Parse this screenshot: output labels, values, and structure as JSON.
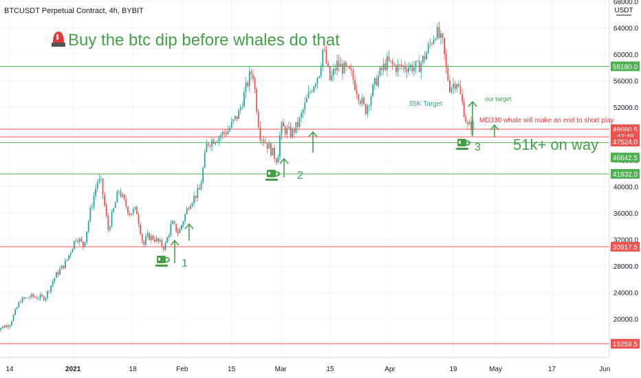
{
  "header": {
    "symbol_title": "BTCUSDT Perpetual Contract, 4h, BYBIT",
    "currency": "USDT"
  },
  "colors": {
    "up": "#26a69a",
    "down": "#ef5350",
    "green_line": "#4caf50",
    "red_line": "#ef5350",
    "annotation_green": "#43a047",
    "annotation_red": "#e53935"
  },
  "annotations": {
    "headline_icon": "red-siren-icon",
    "headline": "Buy the btc dip before whales do that",
    "target_55k": "55K Target",
    "our_target": "our target",
    "whale_note": "MD330 whale will make an end to short play",
    "on_way": "51k+ on way",
    "dip1": "1",
    "dip2": "2",
    "dip3": "3",
    "dip_icon": "coffee-cup-icon",
    "arrow_icon": "up-arrow-icon"
  },
  "price_badges": [
    {
      "label": "58180.0",
      "price": 58180,
      "color": "green"
    },
    {
      "label": "48680.5",
      "price": 48680.5,
      "color": "red"
    },
    {
      "label": "43:49",
      "price": 47650,
      "color": "red"
    },
    {
      "label": "47524.0",
      "price": 46800,
      "color": "red"
    },
    {
      "label": "46642.5",
      "price": 44400,
      "color": "green"
    },
    {
      "label": "41932.0",
      "price": 41932,
      "color": "green"
    },
    {
      "label": "30917.5",
      "price": 30917.5,
      "color": "red"
    },
    {
      "label": "16259.5",
      "price": 16259.5,
      "color": "red"
    }
  ],
  "chart_data": {
    "type": "candlestick",
    "title": "BTCUSDT Perpetual Contract, 4h, BYBIT",
    "yunit": "USDT",
    "ylim": [
      14200,
      68200
    ],
    "y_ticks": [
      "68000.0",
      "64000.0",
      "60000.0",
      "56000.0",
      "52000.0",
      "48000.0",
      "44000.0",
      "40000.0",
      "36000.0",
      "32000.0",
      "28000.0",
      "24000.0",
      "20000.0"
    ],
    "x_ticks": [
      "14",
      "2021",
      "18",
      "Feb",
      "15",
      "Mar",
      "15",
      "Apr",
      "19",
      "May",
      "17",
      "Jun"
    ],
    "series": [
      {
        "name": "price",
        "points": [
          [
            "Dec 10",
            18400
          ],
          [
            "Dec 14",
            19200
          ],
          [
            "Dec 17",
            22800
          ],
          [
            "Dec 20",
            23400
          ],
          [
            "Dec 24",
            23200
          ],
          [
            "Dec 27",
            26500
          ],
          [
            "Dec 30",
            28600
          ],
          [
            "Jan 2",
            32500
          ],
          [
            "Jan 4",
            31000
          ],
          [
            "Jan 6",
            36500
          ],
          [
            "Jan 8",
            41000
          ],
          [
            "Jan 9",
            40500
          ],
          [
            "Jan 11",
            33500
          ],
          [
            "Jan 13",
            37500
          ],
          [
            "Jan 14",
            39500
          ],
          [
            "Jan 17",
            36000
          ],
          [
            "Jan 19",
            36500
          ],
          [
            "Jan 21",
            31000
          ],
          [
            "Jan 22",
            32500
          ],
          [
            "Jan 24",
            32200
          ],
          [
            "Jan 27",
            30800
          ],
          [
            "Jan 29",
            34500
          ],
          [
            "Jan 31",
            33000
          ],
          [
            "Feb 3",
            37500
          ],
          [
            "Feb 6",
            39500
          ],
          [
            "Feb 8",
            46500
          ],
          [
            "Feb 11",
            47500
          ],
          [
            "Feb 14",
            48500
          ],
          [
            "Feb 17",
            51000
          ],
          [
            "Feb 20",
            56500
          ],
          [
            "Feb 21",
            57500
          ],
          [
            "Feb 23",
            48000
          ],
          [
            "Feb 25",
            46500
          ],
          [
            "Feb 28",
            44000
          ],
          [
            "Mar 1",
            49000
          ],
          [
            "Mar 4",
            48000
          ],
          [
            "Mar 6",
            49500
          ],
          [
            "Mar 9",
            54000
          ],
          [
            "Mar 12",
            57500
          ],
          [
            "Mar 13",
            61000
          ],
          [
            "Mar 15",
            56000
          ],
          [
            "Mar 17",
            58500
          ],
          [
            "Mar 21",
            57000
          ],
          [
            "Mar 23",
            54000
          ],
          [
            "Mar 25",
            51500
          ],
          [
            "Mar 28",
            56000
          ],
          [
            "Mar 31",
            58800
          ],
          [
            "Apr 3",
            58000
          ],
          [
            "Apr 6",
            58200
          ],
          [
            "Apr 9",
            58000
          ],
          [
            "Apr 11",
            59800
          ],
          [
            "Apr 14",
            63500
          ],
          [
            "Apr 15",
            62500
          ],
          [
            "Apr 16",
            61500
          ],
          [
            "Apr 17",
            57500
          ],
          [
            "Apr 18",
            55000
          ],
          [
            "Apr 20",
            56000
          ],
          [
            "Apr 22",
            51500
          ],
          [
            "Apr 23",
            49000
          ],
          [
            "Apr 25",
            49500
          ]
        ]
      }
    ],
    "horizontal_levels": [
      {
        "price": 58180,
        "color": "green"
      },
      {
        "price": 48680.5,
        "color": "red"
      },
      {
        "price": 47524,
        "color": "red"
      },
      {
        "price": 46642.5,
        "color": "green"
      },
      {
        "price": 41932,
        "color": "green"
      },
      {
        "price": 30917.5,
        "color": "red"
      },
      {
        "price": 16259.5,
        "color": "red"
      }
    ],
    "grid": true,
    "legend": "top-left"
  }
}
